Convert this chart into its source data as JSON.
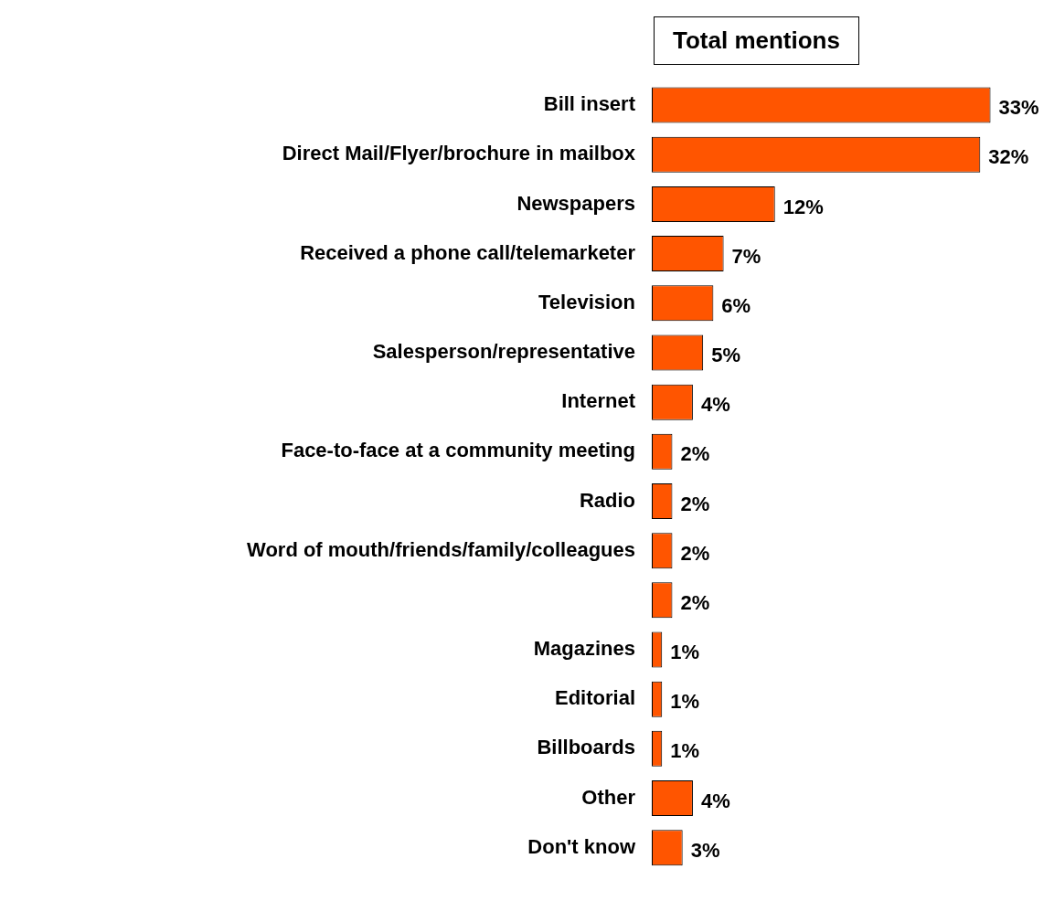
{
  "chart_data": {
    "type": "bar",
    "orientation": "horizontal",
    "title": "Total mentions",
    "categories": [
      "Bill insert",
      "Direct Mail/Flyer/brochure in mailbox",
      "Newspapers",
      "Received a phone call/telemarketer",
      "Television",
      "Salesperson/representative",
      "Internet",
      "Face-to-face at a community meeting",
      "Radio",
      "Word of mouth/friends/family/colleagues",
      null,
      "Magazines",
      "Editorial",
      "Billboards",
      "Other",
      "Don't know"
    ],
    "values": [
      33,
      32,
      12,
      7,
      6,
      5,
      4,
      2,
      2,
      2,
      2,
      1,
      1,
      1,
      4,
      3
    ],
    "value_labels": [
      "33%",
      "32%",
      "12%",
      "7%",
      "6%",
      "5%",
      "4%",
      "2%",
      "2%",
      "2%",
      "2%",
      "1%",
      "1%",
      "1%",
      "4%",
      "3%"
    ],
    "color": "#ff5500",
    "legend": false
  }
}
